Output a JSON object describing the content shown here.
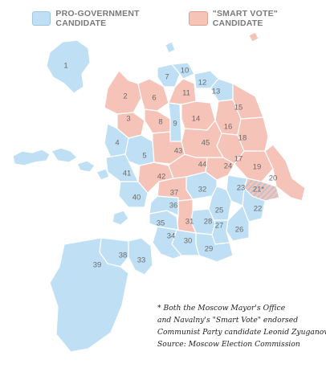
{
  "legend": {
    "government_label": "PRO-GOVERNMENT CANDIDATE",
    "smart_vote_label": "\"SMART VOTE\" CANDIDATE"
  },
  "colors": {
    "government": "#bfe0f4",
    "smart_vote": "#f6c3b8",
    "border": "#ffffff",
    "label": "#6b6b6b"
  },
  "note": {
    "line1": "* Both the Moscow Mayor's Office",
    "line2": "and Navalny's \"Smart Vote\" endorsed",
    "line3": "Communist Party candidate Leonid Zyuganov",
    "source": "Source: Moscow Election Commission"
  },
  "districts": [
    {
      "id": "1",
      "result": "government"
    },
    {
      "id": "2",
      "result": "smart_vote"
    },
    {
      "id": "3",
      "result": "smart_vote"
    },
    {
      "id": "4",
      "result": "government"
    },
    {
      "id": "5",
      "result": "government"
    },
    {
      "id": "6",
      "result": "smart_vote"
    },
    {
      "id": "7",
      "result": "government"
    },
    {
      "id": "8",
      "result": "smart_vote"
    },
    {
      "id": "9",
      "result": "government"
    },
    {
      "id": "10",
      "result": "government"
    },
    {
      "id": "11",
      "result": "smart_vote"
    },
    {
      "id": "12",
      "result": "government"
    },
    {
      "id": "13",
      "result": "government"
    },
    {
      "id": "14",
      "result": "smart_vote"
    },
    {
      "id": "15",
      "result": "smart_vote"
    },
    {
      "id": "16",
      "result": "smart_vote"
    },
    {
      "id": "17",
      "result": "smart_vote"
    },
    {
      "id": "18",
      "result": "smart_vote"
    },
    {
      "id": "19",
      "result": "smart_vote"
    },
    {
      "id": "20",
      "result": "smart_vote"
    },
    {
      "id": "21*",
      "result": "both"
    },
    {
      "id": "22",
      "result": "government"
    },
    {
      "id": "23",
      "result": "government"
    },
    {
      "id": "24",
      "result": "smart_vote"
    },
    {
      "id": "25",
      "result": "government"
    },
    {
      "id": "26",
      "result": "government"
    },
    {
      "id": "27",
      "result": "government"
    },
    {
      "id": "28",
      "result": "government"
    },
    {
      "id": "29",
      "result": "government"
    },
    {
      "id": "30",
      "result": "government"
    },
    {
      "id": "31",
      "result": "smart_vote"
    },
    {
      "id": "32",
      "result": "government"
    },
    {
      "id": "33",
      "result": "government"
    },
    {
      "id": "34",
      "result": "government"
    },
    {
      "id": "35",
      "result": "government"
    },
    {
      "id": "36",
      "result": "government"
    },
    {
      "id": "37",
      "result": "smart_vote"
    },
    {
      "id": "38",
      "result": "government"
    },
    {
      "id": "39",
      "result": "government"
    },
    {
      "id": "40",
      "result": "government"
    },
    {
      "id": "41",
      "result": "government"
    },
    {
      "id": "42",
      "result": "smart_vote"
    },
    {
      "id": "43",
      "result": "smart_vote"
    },
    {
      "id": "44",
      "result": "smart_vote"
    },
    {
      "id": "45",
      "result": "smart_vote"
    }
  ]
}
